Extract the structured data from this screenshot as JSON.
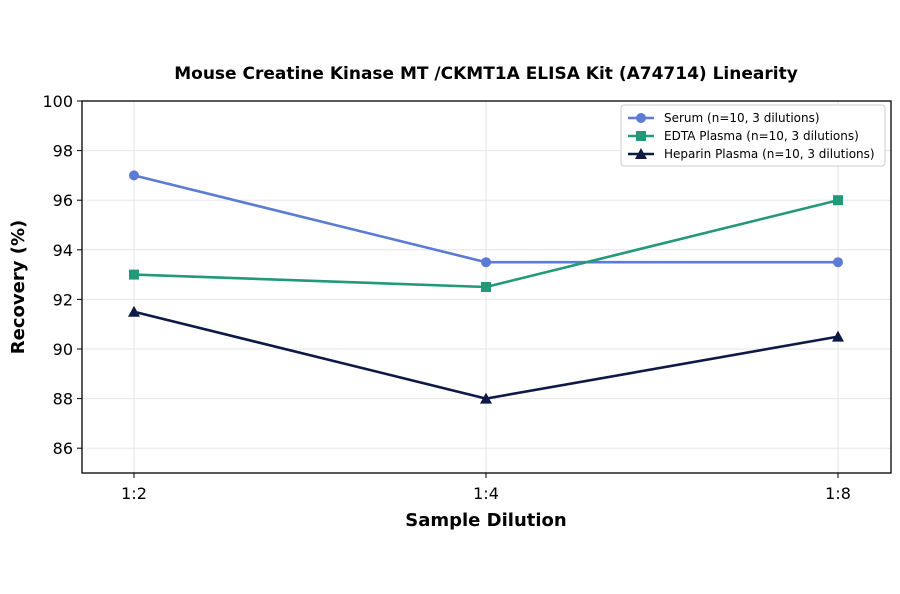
{
  "chart_data": {
    "type": "line",
    "title": "Mouse Creatine Kinase MT /CKMT1A ELISA Kit (A74714) Linearity",
    "xlabel": "Sample Dilution",
    "ylabel": "Recovery (%)",
    "categories": [
      "1:2",
      "1:4",
      "1:8"
    ],
    "ylim": [
      85,
      100
    ],
    "yticks": [
      86,
      88,
      90,
      92,
      94,
      96,
      98,
      100
    ],
    "grid": true,
    "legend_position": "top-right",
    "series": [
      {
        "name": "Serum (n=10, 3 dilutions)",
        "values": [
          97,
          93.5,
          93.5
        ],
        "color": "#5b7bd5",
        "marker": "circle"
      },
      {
        "name": "EDTA Plasma (n=10, 3 dilutions)",
        "values": [
          93,
          92.5,
          96
        ],
        "color": "#23997a",
        "marker": "square"
      },
      {
        "name": "Heparin Plasma (n=10, 3 dilutions)",
        "values": [
          91.5,
          88,
          90.5
        ],
        "color": "#0e1a45",
        "marker": "triangle"
      }
    ]
  }
}
